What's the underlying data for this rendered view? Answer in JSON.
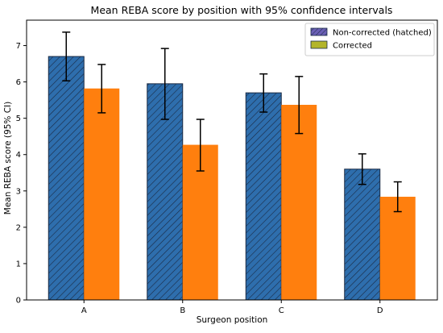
{
  "chart_data": {
    "type": "bar",
    "title": "Mean REBA score by position with 95% confidence intervals",
    "xlabel": "Surgeon position",
    "ylabel": "Mean REBA score (95% CI)",
    "categories": [
      "A",
      "B",
      "C",
      "D"
    ],
    "ylim": [
      0,
      7.7
    ],
    "yticks": [
      0,
      1,
      2,
      3,
      4,
      5,
      6,
      7
    ],
    "grid": false,
    "legend_position": "top-right",
    "series": [
      {
        "name": "Non-corrected (hatched)",
        "values": [
          6.7,
          5.95,
          5.7,
          3.6
        ],
        "ci_low": [
          6.03,
          4.97,
          5.17,
          3.18
        ],
        "ci_high": [
          7.37,
          6.92,
          6.22,
          4.02
        ],
        "color": "#2e6ead",
        "legend_color": "#6a5fb5",
        "hatched": true
      },
      {
        "name": "Corrected",
        "values": [
          5.82,
          4.27,
          5.37,
          2.84
        ],
        "ci_low": [
          5.15,
          3.55,
          4.58,
          2.43
        ],
        "ci_high": [
          6.48,
          4.97,
          6.15,
          3.25
        ],
        "color": "#ff7f0e",
        "legend_color": "#b3b52a",
        "hatched": false
      }
    ]
  }
}
